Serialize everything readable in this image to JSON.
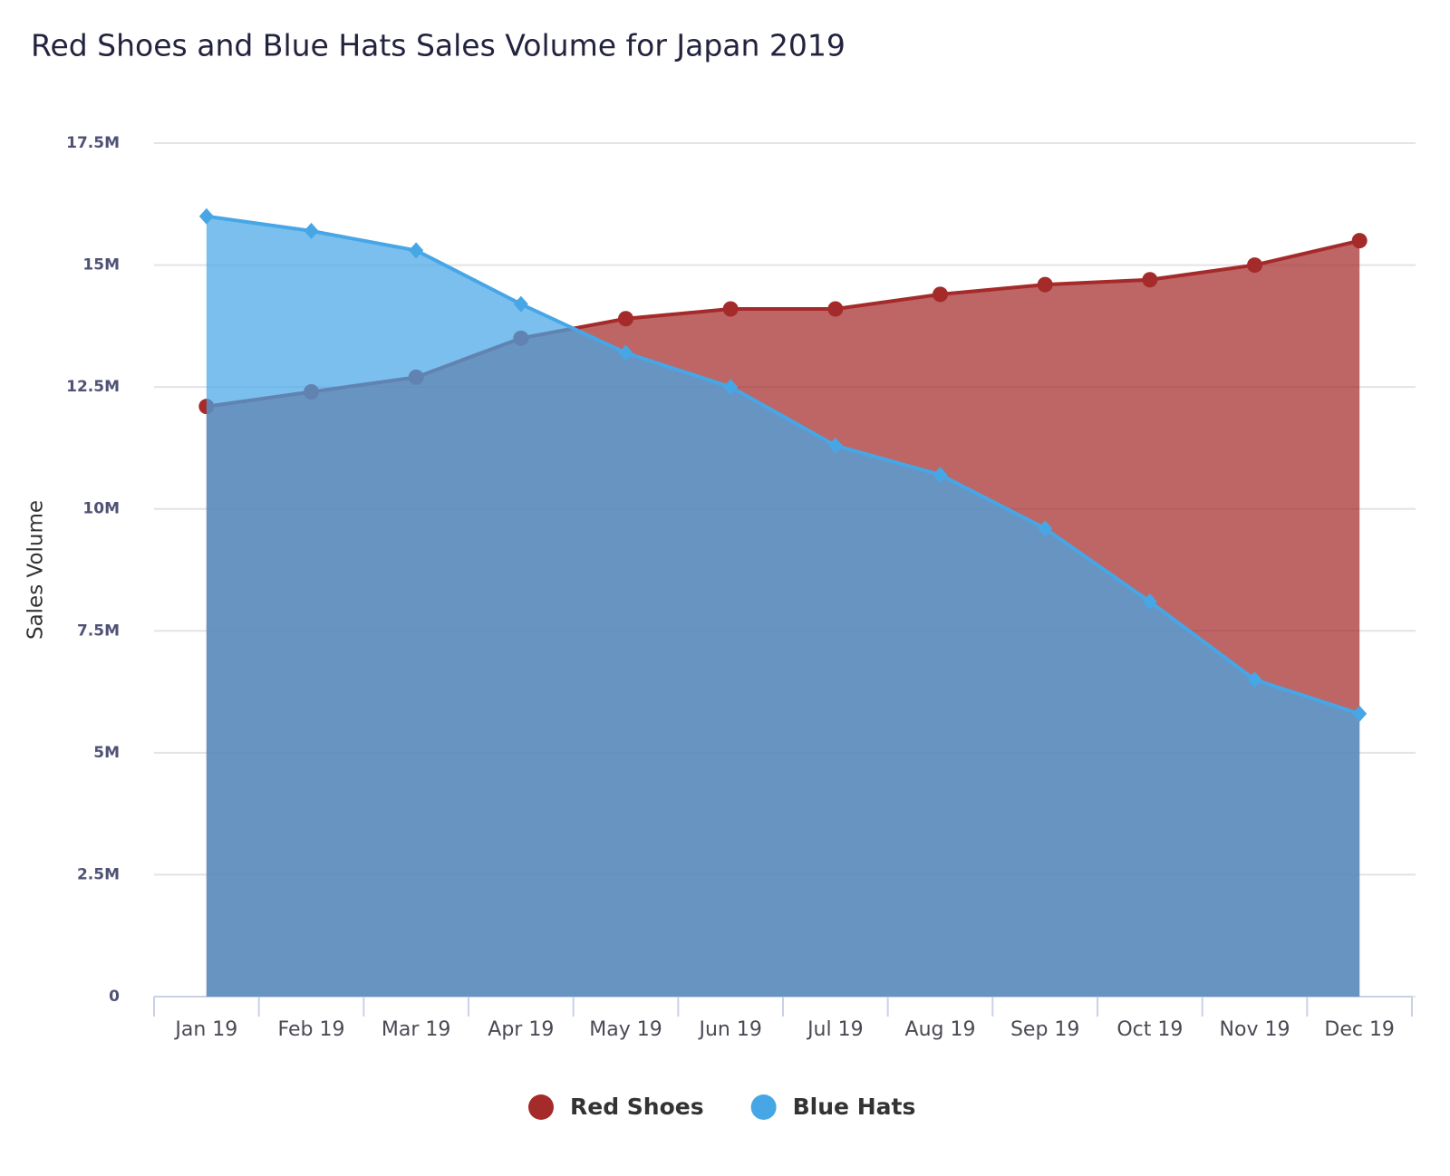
{
  "chart_data": {
    "type": "area",
    "title": "Red Shoes and Blue Hats Sales Volume for Japan 2019",
    "y_label": "Sales Volume",
    "categories": [
      "Jan 19",
      "Feb 19",
      "Mar 19",
      "Apr 19",
      "May 19",
      "Jun 19",
      "Jul 19",
      "Aug 19",
      "Sep 19",
      "Oct 19",
      "Nov 19",
      "Dec 19"
    ],
    "series": [
      {
        "name": "Red Shoes",
        "color": "#a52a2a",
        "marker": "circle",
        "values": [
          12100000,
          12400000,
          12700000,
          13500000,
          13900000,
          14100000,
          14100000,
          14400000,
          14600000,
          14700000,
          15000000,
          15500000
        ]
      },
      {
        "name": "Blue Hats",
        "color": "#47a6e6",
        "marker": "diamond",
        "values": [
          16000000,
          15700000,
          15300000,
          14200000,
          13200000,
          12500000,
          11300000,
          10700000,
          9600000,
          8100000,
          6500000,
          5800000
        ]
      }
    ],
    "ylim": [
      0,
      17500000
    ],
    "yticks": [
      0,
      {
        "value": 2500000,
        "label": "2.5M"
      },
      {
        "value": 5000000,
        "label": "5M"
      },
      {
        "value": 7500000,
        "label": "7.5M"
      },
      {
        "value": 10000000,
        "label": "10M"
      },
      {
        "value": 12500000,
        "label": "12.5M"
      },
      {
        "value": 15000000,
        "label": "15M"
      },
      {
        "value": 17500000,
        "label": "17.5M"
      }
    ],
    "grid": true,
    "legend": "bottom"
  }
}
